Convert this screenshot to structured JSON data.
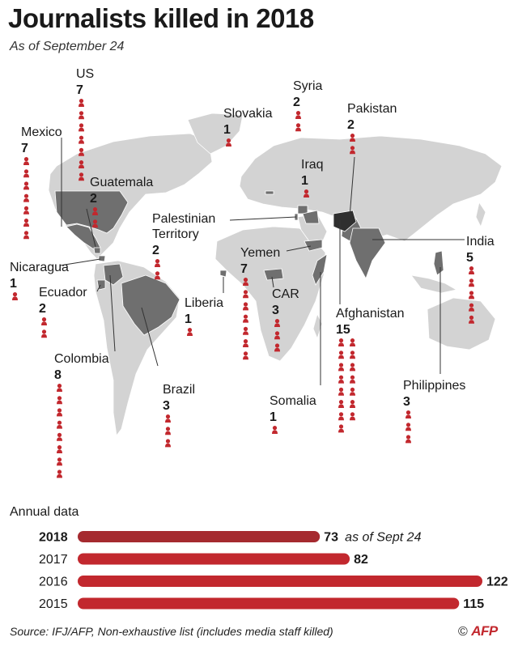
{
  "title": "Journalists killed in 2018",
  "subtitle": "As of September 24",
  "annual_label": "Annual data",
  "source": "Source: IFJ/AFP, Non-exhaustive list (includes media staff killed)",
  "logo": {
    "symbol": "©",
    "text": "AFP"
  },
  "colors": {
    "accent": "#c2282e",
    "current_year": "#a52a2f",
    "land": "#d0d0d0",
    "highlight": "#7a7a7a",
    "dark_highlight": "#3a3a3a"
  },
  "icon": "person-icon",
  "chart_data": [
    {
      "type": "map",
      "series": [
        {
          "name": "US",
          "value": 7
        },
        {
          "name": "Mexico",
          "value": 7
        },
        {
          "name": "Guatemala",
          "value": 2
        },
        {
          "name": "Nicaragua",
          "value": 1
        },
        {
          "name": "Ecuador",
          "value": 2
        },
        {
          "name": "Colombia",
          "value": 8
        },
        {
          "name": "Brazil",
          "value": 3
        },
        {
          "name": "Liberia",
          "value": 1
        },
        {
          "name": "Palestinian Territory",
          "value": 2
        },
        {
          "name": "Yemen",
          "value": 7
        },
        {
          "name": "CAR",
          "value": 3
        },
        {
          "name": "Somalia",
          "value": 1
        },
        {
          "name": "Slovakia",
          "value": 1
        },
        {
          "name": "Syria",
          "value": 2
        },
        {
          "name": "Iraq",
          "value": 1
        },
        {
          "name": "Pakistan",
          "value": 2
        },
        {
          "name": "Afghanistan",
          "value": 15
        },
        {
          "name": "India",
          "value": 5
        },
        {
          "name": "Philippines",
          "value": 3
        }
      ]
    },
    {
      "type": "bar",
      "categories": [
        "2018",
        "2017",
        "2016",
        "2015"
      ],
      "values": [
        73,
        82,
        122,
        115
      ],
      "annotations": [
        {
          "category": "2018",
          "text": "as of Sept 24"
        }
      ],
      "xlim": [
        0,
        122
      ]
    }
  ]
}
